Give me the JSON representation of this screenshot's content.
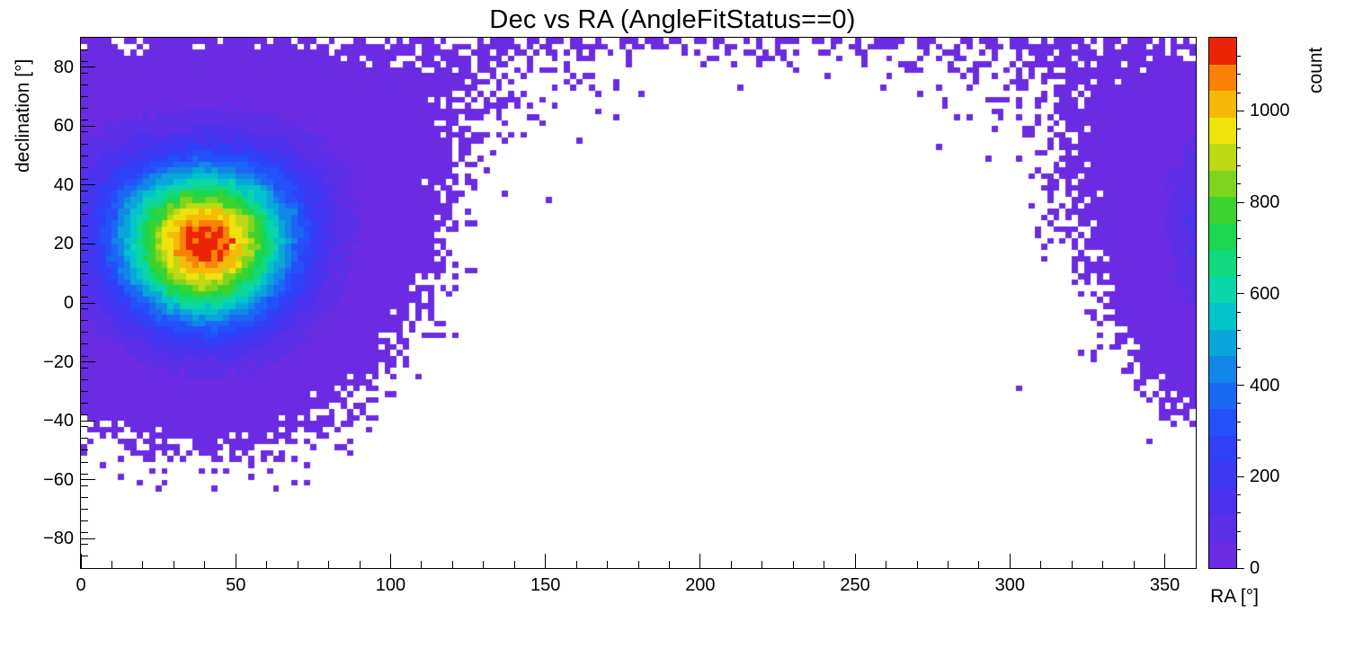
{
  "title": "Dec vs RA (AngleFitStatus==0)",
  "chart_data": {
    "type": "heatmap",
    "title": "Dec vs RA (AngleFitStatus==0)",
    "xlabel": "RA [°]",
    "ylabel": "declination [°]",
    "zlabel": "count",
    "xlim": [
      0,
      360
    ],
    "ylim": [
      -90,
      90
    ],
    "zlim": [
      0,
      1160
    ],
    "x_ticks_major": [
      0,
      50,
      100,
      150,
      200,
      250,
      300,
      350
    ],
    "x_minor_step": 10,
    "y_ticks_major": [
      -80,
      -60,
      -40,
      -20,
      0,
      20,
      40,
      60,
      80
    ],
    "y_minor_step": 4,
    "z_ticks_major": [
      0,
      200,
      400,
      600,
      800,
      1000
    ],
    "z_minor_step": 40,
    "grid": false,
    "legend_position": "right-colorbar",
    "n_contours": 20,
    "bins": {
      "nx": 180,
      "ny": 90
    },
    "distribution": {
      "model": "poisson-sampled spherical gaussian blob with RA wraparound",
      "center_ra_deg": 40,
      "center_dec_deg": 20,
      "sigma_deg": 18.5,
      "peak_count_per_bin": 1150,
      "ra_wraparound": true,
      "seed": 20
    },
    "palette": [
      "#6a2be2",
      "#5b2ee8",
      "#4c32ee",
      "#3e38f3",
      "#2f41f8",
      "#2350f9",
      "#1a68f3",
      "#1287e8",
      "#0aa6da",
      "#03c4cb",
      "#0ad7a9",
      "#12d97d",
      "#1bd64f",
      "#3cd32f",
      "#7ed51e",
      "#bcd914",
      "#f0e30c",
      "#f7b908",
      "#f78205",
      "#ec2405"
    ]
  }
}
